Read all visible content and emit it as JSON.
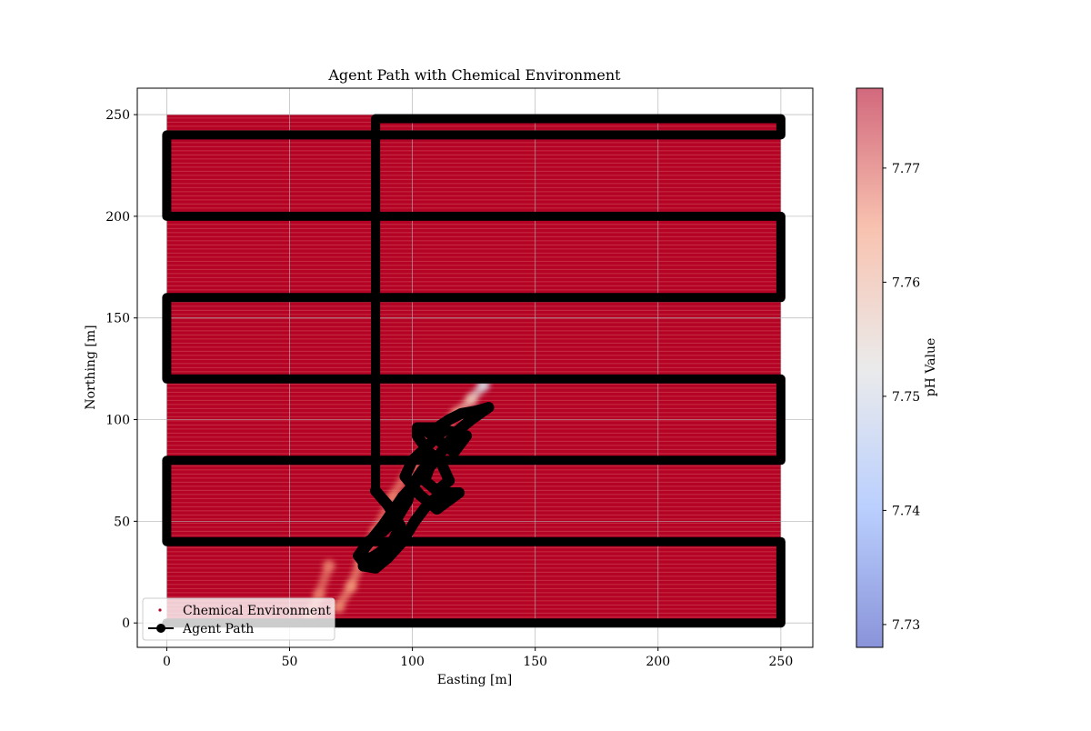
{
  "chart_data": {
    "type": "scatter",
    "title": "Agent Path with Chemical Environment",
    "xlabel": "Easting [m]",
    "ylabel": "Northing [m]",
    "xlim": [
      -12,
      263
    ],
    "ylim": [
      -12,
      263
    ],
    "xticks": [
      0,
      50,
      100,
      150,
      200,
      250
    ],
    "yticks": [
      0,
      50,
      100,
      150,
      200,
      250
    ],
    "grid": true,
    "legend": {
      "placement": "bottom-left",
      "entries": [
        {
          "label": "Chemical Environment",
          "marker": "dot",
          "color": "#b40426"
        },
        {
          "label": "Agent Path",
          "marker": "line-with-circle",
          "color": "#000000"
        }
      ]
    },
    "colorbar": {
      "label": "pH Value",
      "colormap": "coolwarm",
      "range": [
        7.728,
        7.777
      ],
      "ticks": [
        7.73,
        7.74,
        7.75,
        7.76,
        7.77
      ]
    },
    "series": [
      {
        "name": "Chemical Environment",
        "kind": "field",
        "extent_x": [
          0,
          250
        ],
        "extent_y": [
          0,
          250
        ],
        "background_ph": 7.777,
        "plume": [
          {
            "x": 129,
            "y": 117,
            "ph": 7.748
          },
          {
            "x": 124,
            "y": 110,
            "ph": 7.757
          },
          {
            "x": 118,
            "y": 103,
            "ph": 7.762
          },
          {
            "x": 110,
            "y": 93,
            "ph": 7.764
          },
          {
            "x": 100,
            "y": 78,
            "ph": 7.766
          },
          {
            "x": 92,
            "y": 62,
            "ph": 7.767
          },
          {
            "x": 85,
            "y": 45,
            "ph": 7.767
          },
          {
            "x": 79,
            "y": 30,
            "ph": 7.766
          },
          {
            "x": 75,
            "y": 18,
            "ph": 7.765
          },
          {
            "x": 70,
            "y": 8,
            "ph": 7.766
          }
        ],
        "plume_secondary": [
          {
            "x": 66,
            "y": 28,
            "ph": 7.767
          },
          {
            "x": 62,
            "y": 14,
            "ph": 7.767
          },
          {
            "x": 58,
            "y": 3,
            "ph": 7.768
          }
        ]
      },
      {
        "name": "Agent Path",
        "kind": "path",
        "color": "#000000",
        "lawnmower": [
          {
            "x": 0,
            "y": 0
          },
          {
            "x": 250,
            "y": 0
          },
          {
            "x": 250,
            "y": 40
          },
          {
            "x": 0,
            "y": 40
          },
          {
            "x": 0,
            "y": 80
          },
          {
            "x": 250,
            "y": 80
          },
          {
            "x": 250,
            "y": 120
          },
          {
            "x": 0,
            "y": 120
          },
          {
            "x": 0,
            "y": 160
          },
          {
            "x": 250,
            "y": 160
          },
          {
            "x": 250,
            "y": 200
          },
          {
            "x": 0,
            "y": 200
          },
          {
            "x": 0,
            "y": 240
          },
          {
            "x": 250,
            "y": 240
          },
          {
            "x": 250,
            "y": 248
          },
          {
            "x": 85,
            "y": 248
          },
          {
            "x": 85,
            "y": 65
          }
        ],
        "adaptive": [
          {
            "x": 85,
            "y": 65
          },
          {
            "x": 90,
            "y": 58
          },
          {
            "x": 95,
            "y": 48
          },
          {
            "x": 92,
            "y": 40
          },
          {
            "x": 86,
            "y": 34
          },
          {
            "x": 80,
            "y": 30
          },
          {
            "x": 78,
            "y": 33
          },
          {
            "x": 82,
            "y": 40
          },
          {
            "x": 88,
            "y": 45
          },
          {
            "x": 94,
            "y": 52
          },
          {
            "x": 98,
            "y": 60
          },
          {
            "x": 100,
            "y": 68
          },
          {
            "x": 104,
            "y": 75
          },
          {
            "x": 108,
            "y": 80
          },
          {
            "x": 105,
            "y": 70
          },
          {
            "x": 110,
            "y": 65
          },
          {
            "x": 115,
            "y": 70
          },
          {
            "x": 112,
            "y": 78
          },
          {
            "x": 106,
            "y": 85
          },
          {
            "x": 102,
            "y": 92
          },
          {
            "x": 102,
            "y": 96
          },
          {
            "x": 110,
            "y": 96
          },
          {
            "x": 115,
            "y": 100
          },
          {
            "x": 120,
            "y": 103
          },
          {
            "x": 125,
            "y": 104
          },
          {
            "x": 131,
            "y": 106
          },
          {
            "x": 124,
            "y": 100
          },
          {
            "x": 118,
            "y": 94
          },
          {
            "x": 113,
            "y": 86
          },
          {
            "x": 108,
            "y": 78
          },
          {
            "x": 102,
            "y": 70
          },
          {
            "x": 96,
            "y": 62
          },
          {
            "x": 92,
            "y": 55
          },
          {
            "x": 88,
            "y": 48
          },
          {
            "x": 84,
            "y": 42
          },
          {
            "x": 80,
            "y": 36
          },
          {
            "x": 80,
            "y": 28
          },
          {
            "x": 85,
            "y": 27
          },
          {
            "x": 90,
            "y": 32
          },
          {
            "x": 96,
            "y": 40
          },
          {
            "x": 101,
            "y": 50
          },
          {
            "x": 106,
            "y": 58
          },
          {
            "x": 112,
            "y": 64
          },
          {
            "x": 119,
            "y": 64
          },
          {
            "x": 110,
            "y": 56
          },
          {
            "x": 103,
            "y": 63
          },
          {
            "x": 97,
            "y": 72
          },
          {
            "x": 100,
            "y": 80
          },
          {
            "x": 107,
            "y": 88
          },
          {
            "x": 113,
            "y": 95
          },
          {
            "x": 122,
            "y": 92
          },
          {
            "x": 117,
            "y": 84
          },
          {
            "x": 104,
            "y": 96
          }
        ]
      }
    ]
  }
}
